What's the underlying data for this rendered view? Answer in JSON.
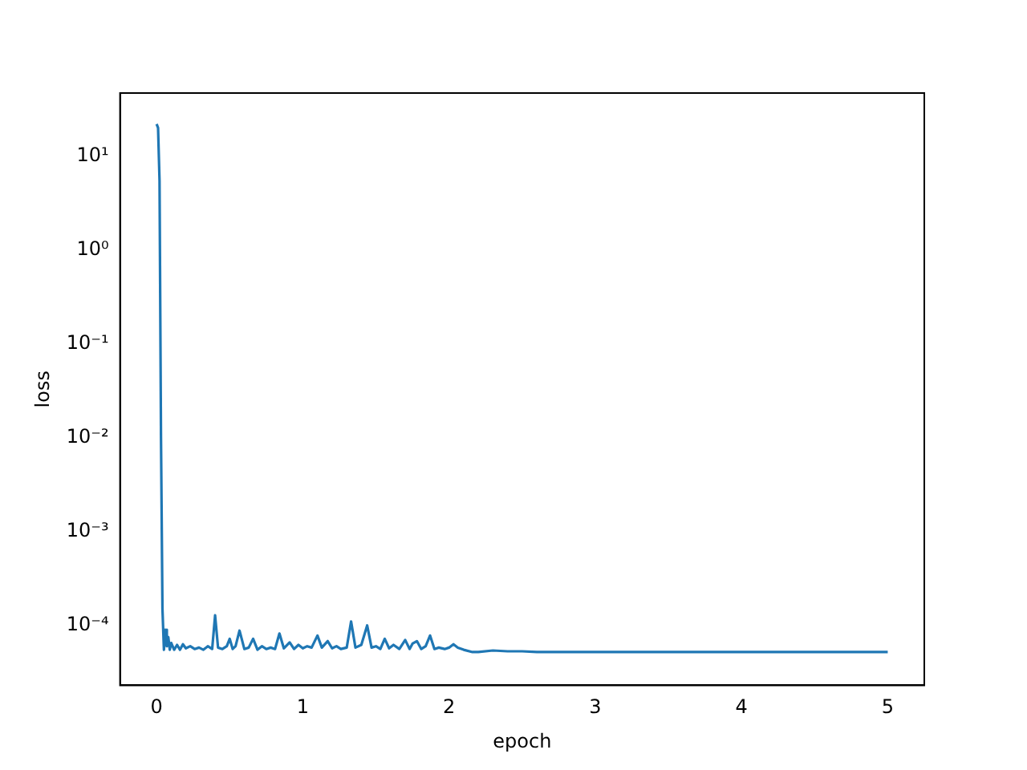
{
  "chart_data": {
    "type": "line",
    "xlabel": "epoch",
    "ylabel": "loss",
    "log": "y",
    "grid": false,
    "legend": false,
    "marker": "none",
    "line_style": "solid",
    "xlim": [
      -0.25,
      5.25
    ],
    "xticks": [
      0,
      1,
      2,
      3,
      4,
      5
    ],
    "ylim": [
      2.3e-05,
      47
    ],
    "yticks": [
      {
        "value": 0.0001,
        "label": "10⁻⁴"
      },
      {
        "value": 0.001,
        "label": "10⁻³"
      },
      {
        "value": 0.01,
        "label": "10⁻²"
      },
      {
        "value": 0.1,
        "label": "10⁻¹"
      },
      {
        "value": 1,
        "label": "10⁰"
      },
      {
        "value": 10,
        "label": "10¹"
      }
    ],
    "x": [
      0,
      0.01,
      0.02,
      0.03,
      0.04,
      0.05,
      0.06,
      0.07,
      0.08,
      0.09,
      0.1,
      0.12,
      0.14,
      0.16,
      0.18,
      0.2,
      0.23,
      0.26,
      0.29,
      0.32,
      0.35,
      0.38,
      0.4,
      0.42,
      0.45,
      0.48,
      0.5,
      0.52,
      0.54,
      0.567,
      0.6,
      0.63,
      0.66,
      0.69,
      0.72,
      0.75,
      0.78,
      0.81,
      0.84,
      0.87,
      0.91,
      0.94,
      0.97,
      1.0,
      1.03,
      1.06,
      1.1,
      1.13,
      1.17,
      1.2,
      1.23,
      1.26,
      1.3,
      1.33,
      1.36,
      1.4,
      1.44,
      1.47,
      1.5,
      1.53,
      1.56,
      1.59,
      1.62,
      1.66,
      1.7,
      1.73,
      1.75,
      1.78,
      1.81,
      1.84,
      1.87,
      1.9,
      1.93,
      1.97,
      2.0,
      2.03,
      2.06,
      2.1,
      2.16,
      2.2,
      2.3,
      2.4,
      2.5,
      2.6,
      2.7,
      2.8,
      3.0,
      3.5,
      4.0,
      4.5,
      5.0
    ],
    "series": [
      {
        "color": "#1f77b4",
        "values": [
          22,
          20,
          5.5,
          0.01,
          0.00015,
          5.5e-05,
          9e-05,
          6e-05,
          7.5e-05,
          5.5e-05,
          6.5e-05,
          5.5e-05,
          6.2e-05,
          5.5e-05,
          6.3e-05,
          5.7e-05,
          6e-05,
          5.6e-05,
          5.8e-05,
          5.5e-05,
          6e-05,
          5.6e-05,
          0.000128,
          5.8e-05,
          5.6e-05,
          6e-05,
          7.2e-05,
          5.6e-05,
          6e-05,
          8.8e-05,
          5.6e-05,
          5.8e-05,
          7.2e-05,
          5.5e-05,
          6e-05,
          5.6e-05,
          5.8e-05,
          5.6e-05,
          8.2e-05,
          5.7e-05,
          6.6e-05,
          5.6e-05,
          6.2e-05,
          5.7e-05,
          6e-05,
          5.8e-05,
          7.8e-05,
          5.8e-05,
          6.8e-05,
          5.7e-05,
          6e-05,
          5.6e-05,
          5.8e-05,
          0.00011,
          5.8e-05,
          6.2e-05,
          0.0001,
          5.8e-05,
          6e-05,
          5.6e-05,
          7.2e-05,
          5.7e-05,
          6.2e-05,
          5.6e-05,
          7e-05,
          5.6e-05,
          6.4e-05,
          6.8e-05,
          5.6e-05,
          6e-05,
          7.8e-05,
          5.6e-05,
          5.8e-05,
          5.6e-05,
          5.8e-05,
          6.3e-05,
          5.8e-05,
          5.5e-05,
          5.2e-05,
          5.2e-05,
          5.4e-05,
          5.3e-05,
          5.3e-05,
          5.2e-05,
          5.2e-05,
          5.2e-05,
          5.2e-05,
          5.2e-05,
          5.2e-05,
          5.2e-05,
          5.2e-05
        ]
      }
    ]
  }
}
